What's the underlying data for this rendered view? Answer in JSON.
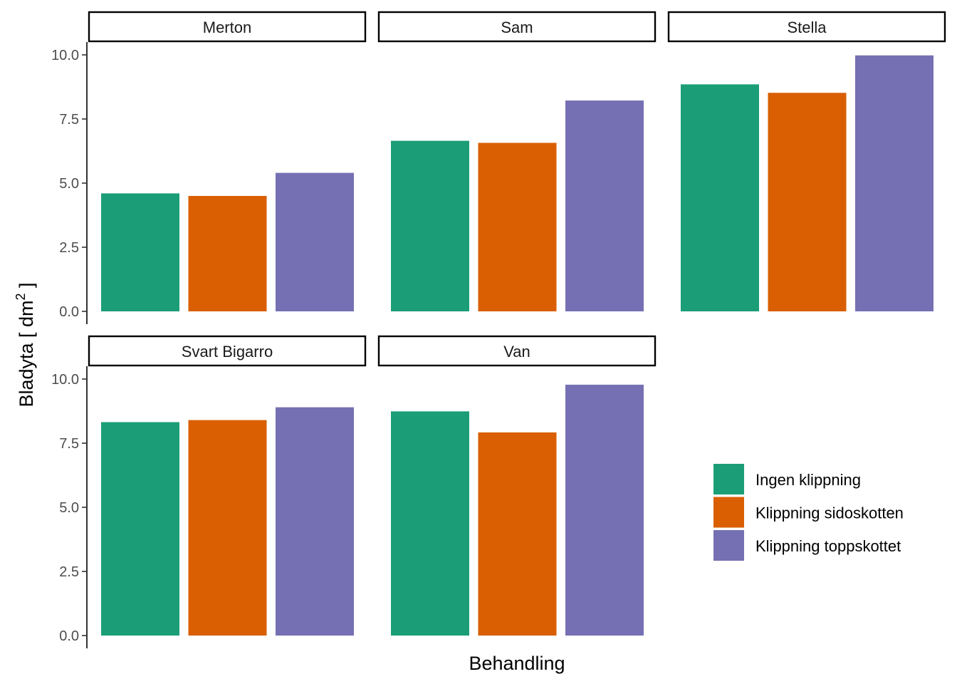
{
  "chart_data": {
    "type": "bar",
    "xlabel": "Behandling",
    "ylabel_text": "Bladyta [ dm",
    "ylabel_sup": "2",
    "ylabel_close": " ]",
    "ylim": [
      0,
      10
    ],
    "y_ticks": [
      "0.0",
      "2.5",
      "5.0",
      "7.5",
      "10.0"
    ],
    "y_tick_values": [
      0,
      2.5,
      5,
      7.5,
      10
    ],
    "series_names": [
      "Ingen klippning",
      "Klippning sidoskotten",
      "Klippning toppskottet"
    ],
    "colors": [
      "#1b9e77",
      "#d95f02",
      "#7570b3"
    ],
    "legend_position": "right",
    "grid": false,
    "facets": [
      {
        "name": "Merton",
        "values": [
          4.6,
          4.5,
          5.4
        ]
      },
      {
        "name": "Sam",
        "values": [
          6.65,
          6.57,
          8.22
        ]
      },
      {
        "name": "Stella",
        "values": [
          8.85,
          8.52,
          9.98
        ]
      },
      {
        "name": "Svart Bigarro",
        "values": [
          8.32,
          8.4,
          8.9
        ]
      },
      {
        "name": "Van",
        "values": [
          8.74,
          7.92,
          9.78
        ]
      }
    ]
  }
}
